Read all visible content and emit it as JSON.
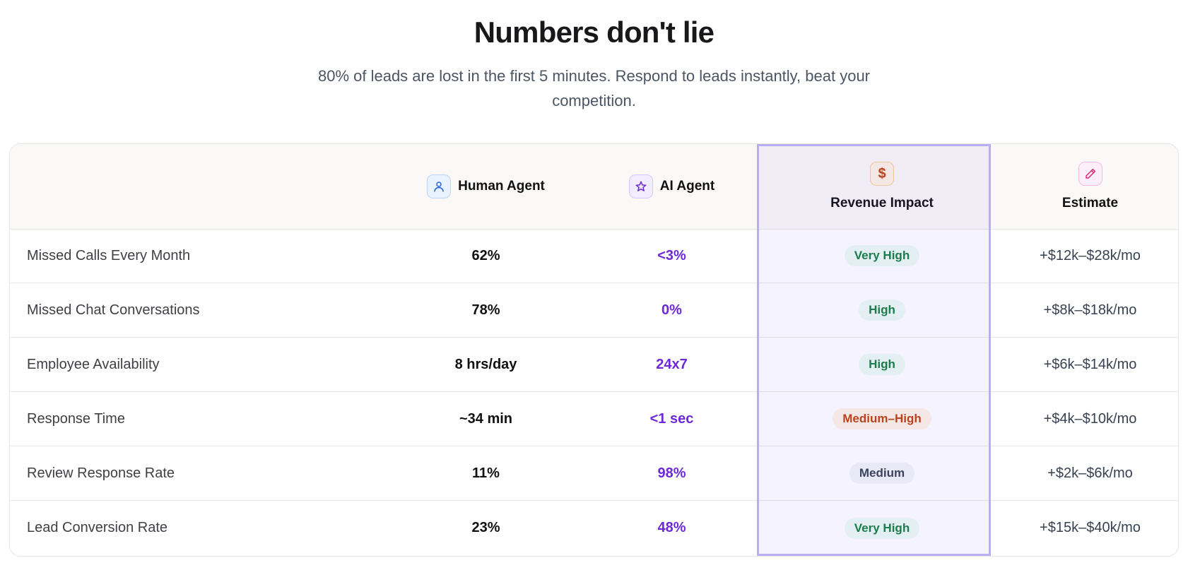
{
  "header": {
    "title": "Numbers don't lie",
    "subtitle": "80% of leads are lost in the first 5 minutes. Respond to leads instantly, beat your competition."
  },
  "table": {
    "columns": {
      "human": "Human Agent",
      "ai": "AI Agent",
      "impact": "Revenue Impact",
      "estimate": "Estimate"
    },
    "icons": {
      "human": "user-icon",
      "ai": "star-icon",
      "impact": "dollar-icon",
      "estimate": "pencil-icon",
      "impact_glyph": "$"
    },
    "rows": [
      {
        "label": "Missed Calls Every Month",
        "human": "62%",
        "ai": "<3%",
        "impact": "Very High",
        "estimate": "+$12k–$28k/mo"
      },
      {
        "label": "Missed Chat Conversations",
        "human": "78%",
        "ai": "0%",
        "impact": "High",
        "estimate": "+$8k–$18k/mo"
      },
      {
        "label": "Employee Availability",
        "human": "8 hrs/day",
        "ai": "24x7",
        "impact": "High",
        "estimate": "+$6k–$14k/mo"
      },
      {
        "label": "Response Time",
        "human": "~34 min",
        "ai": "<1 sec",
        "impact": "Medium–High",
        "estimate": "+$4k–$10k/mo"
      },
      {
        "label": "Review Response Rate",
        "human": "11%",
        "ai": "98%",
        "impact": "Medium",
        "estimate": "+$2k–$6k/mo"
      },
      {
        "label": "Lead Conversion Rate",
        "human": "23%",
        "ai": "48%",
        "impact": "Very High",
        "estimate": "+$15k–$40k/mo"
      }
    ]
  },
  "colors": {
    "accent_purple": "#6d28d9",
    "highlight_border": "#b9adf4",
    "impact_green": "#15803d",
    "impact_orange": "#c2410c"
  }
}
